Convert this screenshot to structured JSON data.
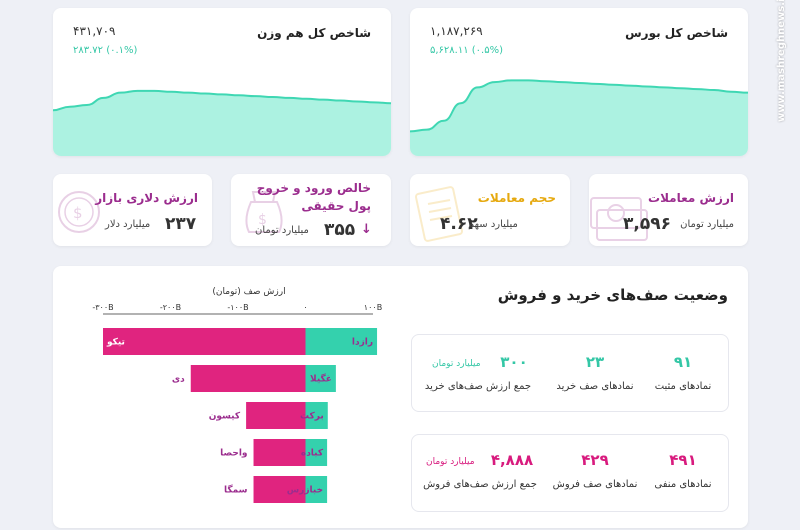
{
  "indices": {
    "main": {
      "title": "شاخص کل بورس",
      "value": "۱,۱۸۷,۲۶۹",
      "change": "۵,۶۲۸.۱۱ (۰.۵%)",
      "series": [
        0.28,
        0.3,
        0.4,
        0.6,
        0.78,
        0.84,
        0.86,
        0.86,
        0.85,
        0.84,
        0.83,
        0.82,
        0.81,
        0.8,
        0.79,
        0.78,
        0.77,
        0.76,
        0.75,
        0.73,
        0.72
      ]
    },
    "equal": {
      "title": "شاخص کل هم وزن",
      "value": "۴۳۱,۷۰۹",
      "change": "۲۸۳.۷۲ (۰.۱%)",
      "series": [
        0.52,
        0.56,
        0.58,
        0.66,
        0.72,
        0.74,
        0.74,
        0.73,
        0.72,
        0.71,
        0.7,
        0.69,
        0.68,
        0.67,
        0.66,
        0.65,
        0.64,
        0.63,
        0.62,
        0.61,
        0.6
      ]
    }
  },
  "stats": [
    {
      "title": "ارزش معاملات",
      "value": "۳,۵۹۶",
      "unit": "میلیارد تومان",
      "color": "#9b2d8e",
      "icon": "money-icon"
    },
    {
      "title": "حجم معاملات",
      "value": "۴.۶۲",
      "unit": "میلیارد سهم",
      "color": "#e6a90f",
      "icon": "document-icon"
    },
    {
      "title_line1": "خالص ورود و خروج",
      "title_line2": "پول حقیقی",
      "value": "۳۵۵",
      "unit": "میلیارد تومان",
      "arrow": "↓",
      "color": "#9b2d8e",
      "icon": "money-bag-icon"
    },
    {
      "title": "ارزش دلاری بازار",
      "value": "۲۳۷",
      "unit": "میلیارد دلار",
      "color": "#9b2d8e",
      "icon": "dollar-icon"
    }
  ],
  "queues": {
    "title": "وضعیت صف‌های خرید و فروش",
    "buy": {
      "positive_count": "۹۱",
      "positive_label": "نمادهای مثبت",
      "queue_count": "۲۳",
      "queue_label": "نمادهای صف خرید",
      "total_value": "۳۰۰",
      "total_unit": "میلیارد تومان",
      "total_label": "جمع ارزش صف‌های خرید"
    },
    "sell": {
      "negative_count": "۴۹۱",
      "negative_label": "نمادهای منفی",
      "queue_count": "۴۲۹",
      "queue_label": "نمادهای صف فروش",
      "total_value": "۴,۸۸۸",
      "total_unit": "میلیارد تومان",
      "total_label": "جمع ارزش صف‌های فروش"
    }
  },
  "chart_data": {
    "type": "bar",
    "title": "ارزش صف (تومان)",
    "x_ticks": [
      "-۳۰۰B",
      "-۲۰۰B",
      "-۱۰۰B",
      "۰",
      "۱۰۰B"
    ],
    "x_tick_values": [
      -300,
      -200,
      -100,
      0,
      100
    ],
    "xlim": [
      -300,
      100
    ],
    "buy_color": "#34d1ad",
    "sell_color": "#e0247f",
    "rows": [
      {
        "buy_name": "رازدا",
        "buy_value": 106,
        "sell_name": "تیکو",
        "sell_value": -300
      },
      {
        "buy_name": "غگیلا",
        "buy_value": 45,
        "sell_name": "دی",
        "sell_value": -170
      },
      {
        "buy_name": "برکت",
        "buy_value": 33,
        "sell_name": "کیسون",
        "sell_value": -88
      },
      {
        "buy_name": "کباده",
        "buy_value": 32,
        "sell_name": "واحصا",
        "sell_value": -77
      },
      {
        "buy_name": "خبازرس",
        "buy_value": 32,
        "sell_name": "سمگا",
        "sell_value": -77
      }
    ]
  },
  "watermark": "www.mashreghnews.ir"
}
